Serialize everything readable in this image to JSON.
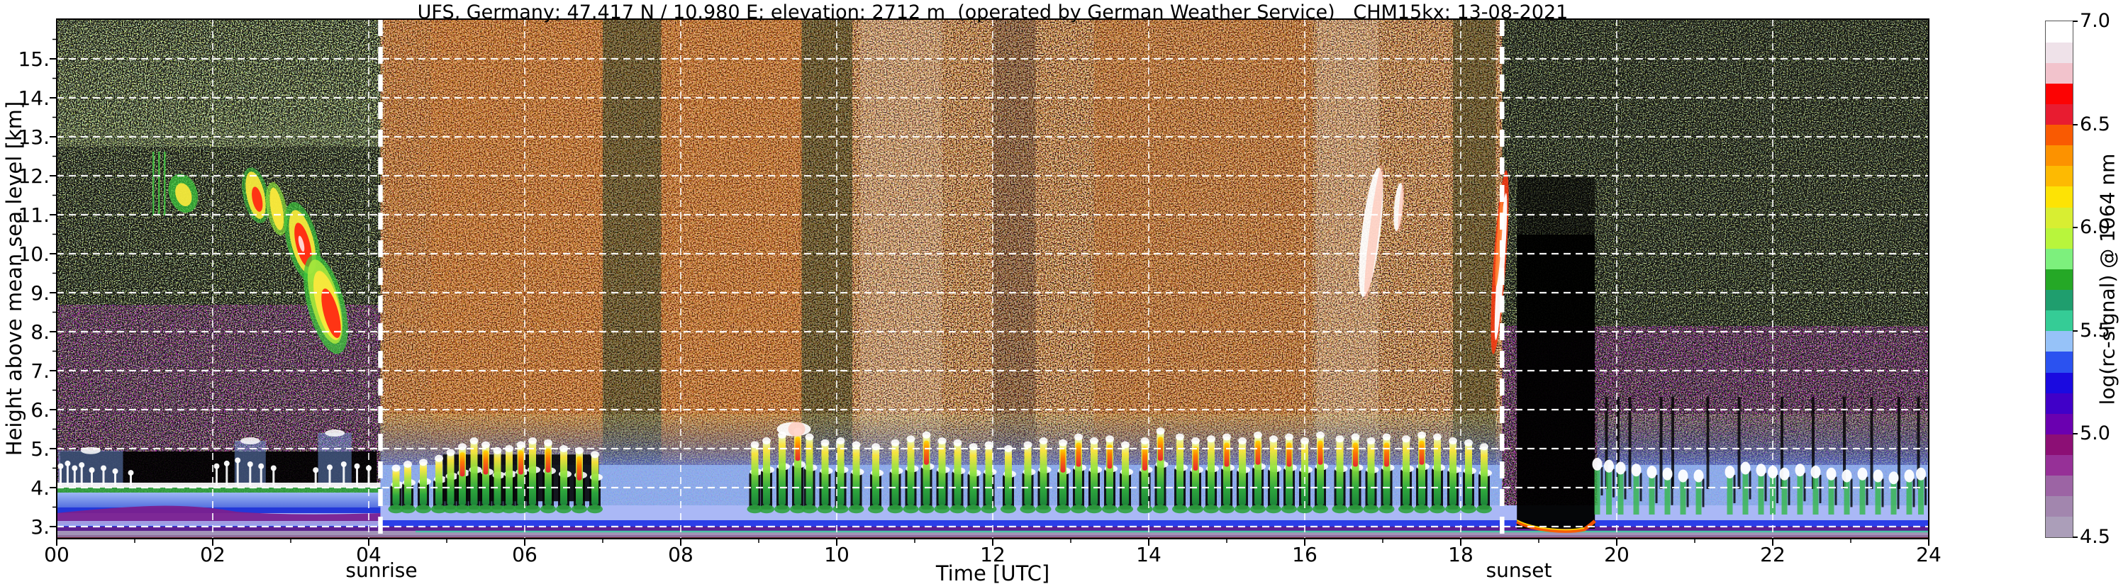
{
  "chart_data": {
    "type": "heatmap",
    "title": "UFS, Germany; 47.417 N / 10.980 E; elevation: 2712 m  (operated by German Weather Service)   CHM15kx: 13-08-2021",
    "xlabel": "Time [UTC]",
    "ylabel": "Height above mean sea level [km]",
    "x_range_hours": [
      0,
      24
    ],
    "y_range_km": [
      2.7,
      16.0
    ],
    "grid": "white dashed lines every 2 h and every 1 km",
    "xticks": [
      {
        "v": 0,
        "label": "00"
      },
      {
        "v": 2,
        "label": "02"
      },
      {
        "v": 4,
        "label": "04"
      },
      {
        "v": 6,
        "label": "06"
      },
      {
        "v": 8,
        "label": "08"
      },
      {
        "v": 10,
        "label": "10"
      },
      {
        "v": 12,
        "label": "12"
      },
      {
        "v": 14,
        "label": "14"
      },
      {
        "v": 16,
        "label": "16"
      },
      {
        "v": 18,
        "label": "18"
      },
      {
        "v": 20,
        "label": "20"
      },
      {
        "v": 22,
        "label": "22"
      },
      {
        "v": 24,
        "label": "24"
      }
    ],
    "yticks": [
      {
        "v": 3,
        "label": "3."
      },
      {
        "v": 4,
        "label": "4."
      },
      {
        "v": 5,
        "label": "5."
      },
      {
        "v": 6,
        "label": "6."
      },
      {
        "v": 7,
        "label": "7."
      },
      {
        "v": 8,
        "label": "8."
      },
      {
        "v": 9,
        "label": "9."
      },
      {
        "v": 10,
        "label": "10."
      },
      {
        "v": 11,
        "label": "11."
      },
      {
        "v": 12,
        "label": "12."
      },
      {
        "v": 13,
        "label": "13."
      },
      {
        "v": 14,
        "label": "14."
      },
      {
        "v": 15,
        "label": "15."
      }
    ],
    "annotations": {
      "sunrise": {
        "label": "sunrise",
        "time_utc": 4.15
      },
      "sunset": {
        "label": "sunset",
        "time_utc": 18.53
      }
    },
    "colorbar": {
      "label": "log(rc-signal) @ 1064 nm",
      "min": 4.5,
      "max": 7.0,
      "step": 0.1,
      "ticks": [
        {
          "v": 4.5,
          "label": "4.5"
        },
        {
          "v": 5.0,
          "label": "5.0"
        },
        {
          "v": 5.5,
          "label": "5.5"
        },
        {
          "v": 6.0,
          "label": "6.0"
        },
        {
          "v": 6.5,
          "label": "6.5"
        },
        {
          "v": 7.0,
          "label": "7.0"
        }
      ],
      "colors_low_to_high": [
        "#ab9eb9",
        "#a286ae",
        "#9c64a4",
        "#963097",
        "#8c0f75",
        "#6a00b0",
        "#4000c8",
        "#1a0ae0",
        "#2b52f0",
        "#96c2f8",
        "#35cc96",
        "#1f9e6e",
        "#25a826",
        "#7df07d",
        "#b8f53c",
        "#d8ee32",
        "#fde305",
        "#fdba02",
        "#fc9200",
        "#f95a02",
        "#e81c30",
        "#fc0303",
        "#f2c3cc",
        "#efe2e9",
        "#ffffff"
      ]
    },
    "features": {
      "night": {
        "t0": 0.0,
        "t1": 4.15,
        "noise": "sparse green/yellow speckle on black, purple speckle below ~6 km"
      },
      "day": {
        "t0": 4.15,
        "t1": 18.53,
        "noise": "dense white/orange/red/black solar-background speckle"
      },
      "evening": {
        "t0": 18.53,
        "t1": 24.0,
        "noise": "green speckle on black, purple speckle below ~5.5 km"
      },
      "day_bands": [
        [
          4.2,
          4.8,
          "warm"
        ],
        [
          4.8,
          7.0,
          "warm2"
        ],
        [
          7.0,
          7.75,
          "dark"
        ],
        [
          7.75,
          9.55,
          "warm2"
        ],
        [
          9.55,
          10.2,
          "dark"
        ],
        [
          10.3,
          11.35,
          "bright"
        ],
        [
          12.0,
          12.55,
          "dim"
        ],
        [
          13.3,
          16.1,
          "warm"
        ],
        [
          16.15,
          16.95,
          "bright"
        ],
        [
          17.9,
          18.45,
          "dark"
        ]
      ],
      "clouds": [
        [
          1.3,
          11.8,
          6,
          45,
          0,
          "g3"
        ],
        [
          1.62,
          11.55,
          20,
          28,
          -18,
          "gy"
        ],
        [
          2.55,
          11.5,
          18,
          40,
          -12,
          "yr"
        ],
        [
          2.82,
          11.15,
          14,
          38,
          -10,
          "y"
        ],
        [
          3.15,
          10.3,
          22,
          58,
          -14,
          "r"
        ],
        [
          3.45,
          8.7,
          26,
          72,
          -15,
          "gyr"
        ],
        [
          9.45,
          5.5,
          24,
          10,
          0,
          "w"
        ],
        [
          16.85,
          10.55,
          13,
          92,
          7,
          "w"
        ],
        [
          17.2,
          11.2,
          6,
          34,
          5,
          "w"
        ],
        [
          18.5,
          9.78,
          11,
          130,
          4,
          "rw"
        ]
      ],
      "plumes_day": [
        [
          4.35,
          4.5,
          0
        ],
        [
          4.5,
          4.6,
          0
        ],
        [
          4.7,
          4.65,
          0
        ],
        [
          4.9,
          4.75,
          0
        ],
        [
          5.05,
          4.9,
          0
        ],
        [
          5.2,
          5.05,
          1
        ],
        [
          5.35,
          5.2,
          0
        ],
        [
          5.5,
          5.1,
          1
        ],
        [
          5.65,
          4.95,
          0
        ],
        [
          5.8,
          5.0,
          0
        ],
        [
          5.95,
          5.1,
          1
        ],
        [
          6.1,
          5.2,
          0
        ],
        [
          6.3,
          5.15,
          1
        ],
        [
          6.5,
          5.0,
          0
        ],
        [
          6.7,
          4.95,
          1
        ],
        [
          6.9,
          4.85,
          0
        ],
        [
          8.95,
          5.1,
          0
        ],
        [
          9.1,
          5.2,
          0
        ],
        [
          9.3,
          5.35,
          0
        ],
        [
          9.5,
          5.45,
          1
        ],
        [
          9.65,
          5.3,
          0
        ],
        [
          9.85,
          5.15,
          0
        ],
        [
          10.05,
          5.2,
          0
        ],
        [
          10.25,
          5.1,
          0
        ],
        [
          10.5,
          5.05,
          0
        ],
        [
          10.75,
          5.15,
          0
        ],
        [
          10.95,
          5.25,
          0
        ],
        [
          11.15,
          5.35,
          1
        ],
        [
          11.35,
          5.2,
          0
        ],
        [
          11.55,
          5.15,
          0
        ],
        [
          11.75,
          5.05,
          0
        ],
        [
          11.95,
          5.1,
          0
        ],
        [
          12.2,
          5.0,
          0
        ],
        [
          12.45,
          5.1,
          0
        ],
        [
          12.65,
          5.2,
          0
        ],
        [
          12.9,
          5.15,
          1
        ],
        [
          13.1,
          5.3,
          1
        ],
        [
          13.3,
          5.2,
          0
        ],
        [
          13.5,
          5.25,
          1
        ],
        [
          13.7,
          5.1,
          0
        ],
        [
          13.95,
          5.2,
          1
        ],
        [
          14.15,
          5.45,
          1
        ],
        [
          14.4,
          5.3,
          0
        ],
        [
          14.6,
          5.2,
          1
        ],
        [
          14.8,
          5.25,
          0
        ],
        [
          15.0,
          5.3,
          1
        ],
        [
          15.2,
          5.2,
          0
        ],
        [
          15.4,
          5.35,
          1
        ],
        [
          15.6,
          5.25,
          0
        ],
        [
          15.8,
          5.3,
          1
        ],
        [
          16.0,
          5.2,
          0
        ],
        [
          16.2,
          5.35,
          1
        ],
        [
          16.45,
          5.25,
          0
        ],
        [
          16.65,
          5.3,
          1
        ],
        [
          16.85,
          5.2,
          0
        ],
        [
          17.05,
          5.3,
          1
        ],
        [
          17.3,
          5.25,
          0
        ],
        [
          17.5,
          5.35,
          1
        ],
        [
          17.7,
          5.3,
          0
        ],
        [
          17.9,
          5.2,
          0
        ],
        [
          18.1,
          5.15,
          0
        ],
        [
          18.3,
          5.05,
          0
        ]
      ],
      "plumes_evening": [
        [
          19.75,
          4.6
        ],
        [
          19.9,
          4.55
        ],
        [
          20.05,
          4.5
        ],
        [
          20.25,
          4.45
        ],
        [
          20.45,
          4.4
        ],
        [
          20.65,
          4.35
        ],
        [
          20.85,
          4.3
        ],
        [
          21.05,
          4.3
        ],
        [
          21.45,
          4.4
        ],
        [
          21.65,
          4.5
        ],
        [
          21.85,
          4.45
        ],
        [
          22.0,
          4.4
        ],
        [
          22.15,
          4.35
        ],
        [
          22.35,
          4.45
        ],
        [
          22.55,
          4.4
        ],
        [
          22.75,
          4.35
        ],
        [
          22.95,
          4.3
        ],
        [
          23.15,
          4.35
        ],
        [
          23.35,
          4.3
        ],
        [
          23.55,
          4.25
        ],
        [
          23.75,
          4.3
        ],
        [
          23.9,
          4.35
        ]
      ],
      "plumes_night": [
        [
          0.05,
          4.55
        ],
        [
          0.14,
          4.62
        ],
        [
          0.23,
          4.5
        ],
        [
          0.32,
          4.58
        ],
        [
          0.45,
          4.45
        ],
        [
          0.6,
          4.5
        ],
        [
          0.75,
          4.42
        ],
        [
          0.95,
          4.38
        ],
        [
          2.05,
          4.55
        ],
        [
          2.18,
          4.62
        ],
        [
          2.32,
          4.7
        ],
        [
          2.48,
          4.6
        ],
        [
          2.62,
          4.55
        ],
        [
          2.78,
          4.5
        ],
        [
          3.32,
          4.45
        ],
        [
          3.5,
          4.52
        ],
        [
          3.68,
          4.6
        ],
        [
          3.85,
          4.55
        ],
        [
          4.0,
          4.5
        ]
      ],
      "night_blue_columns": [
        [
          0.02,
          0.85,
          4.95
        ],
        [
          2.28,
          2.68,
          5.2
        ],
        [
          3.35,
          3.78,
          5.4
        ]
      ],
      "morning_attenuation_block": {
        "t0": 4.95,
        "t1": 6.95,
        "km_top": 4.85,
        "km_bot": 3.65
      },
      "black_column": {
        "t0": 18.72,
        "t1": 19.72,
        "km_top": 10.5,
        "note": "total attenuation gap after sunset, orange fringe at ~3 km"
      },
      "evening_black_streaks": [
        19.85,
        20.0,
        20.15,
        20.55,
        20.7,
        21.15,
        21.55,
        22.1,
        22.5,
        22.9,
        23.25,
        23.6,
        23.85
      ],
      "boundary_layer": {
        "light_blue_km": [
          3.55,
          4.6
        ],
        "periwinkle_km": [
          3.05,
          3.3
        ],
        "blue_stripe_km": [
          2.95,
          3.15
        ],
        "bottom_bands_km": [
          2.7,
          2.95
        ],
        "night_cloud_band_km": [
          3.88,
          4.12
        ]
      }
    },
    "description": "24 h ceilometer attenuated-backscatter quicklook. Green/purple night noise before sunrise and after sunset, bright solar noise between; descending cirrus 01:30-03:40 (8-12.5 km), fall-streak cirrus 16:45-18:40 (7-12 km); convective aerosol plumes 3.5-5.5 km all day; total-attenuation black column 18:45-19:45."
  }
}
